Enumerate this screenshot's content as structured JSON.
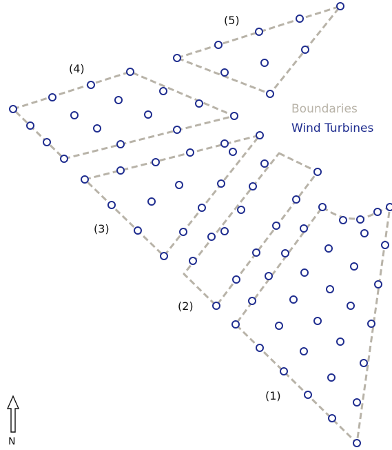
{
  "legend": {
    "boundaries_label": "Boundaries",
    "turbines_label": "Wind Turbines",
    "boundary_color": "#b8b3a8",
    "turbine_color": "#1f2d8f"
  },
  "north_label": "N",
  "areas": [
    {
      "id": "1",
      "label": "(1)"
    },
    {
      "id": "2",
      "label": "(2)"
    },
    {
      "id": "3",
      "label": "(3)"
    },
    {
      "id": "4",
      "label": "(4)"
    },
    {
      "id": "5",
      "label": "(5)"
    }
  ]
}
